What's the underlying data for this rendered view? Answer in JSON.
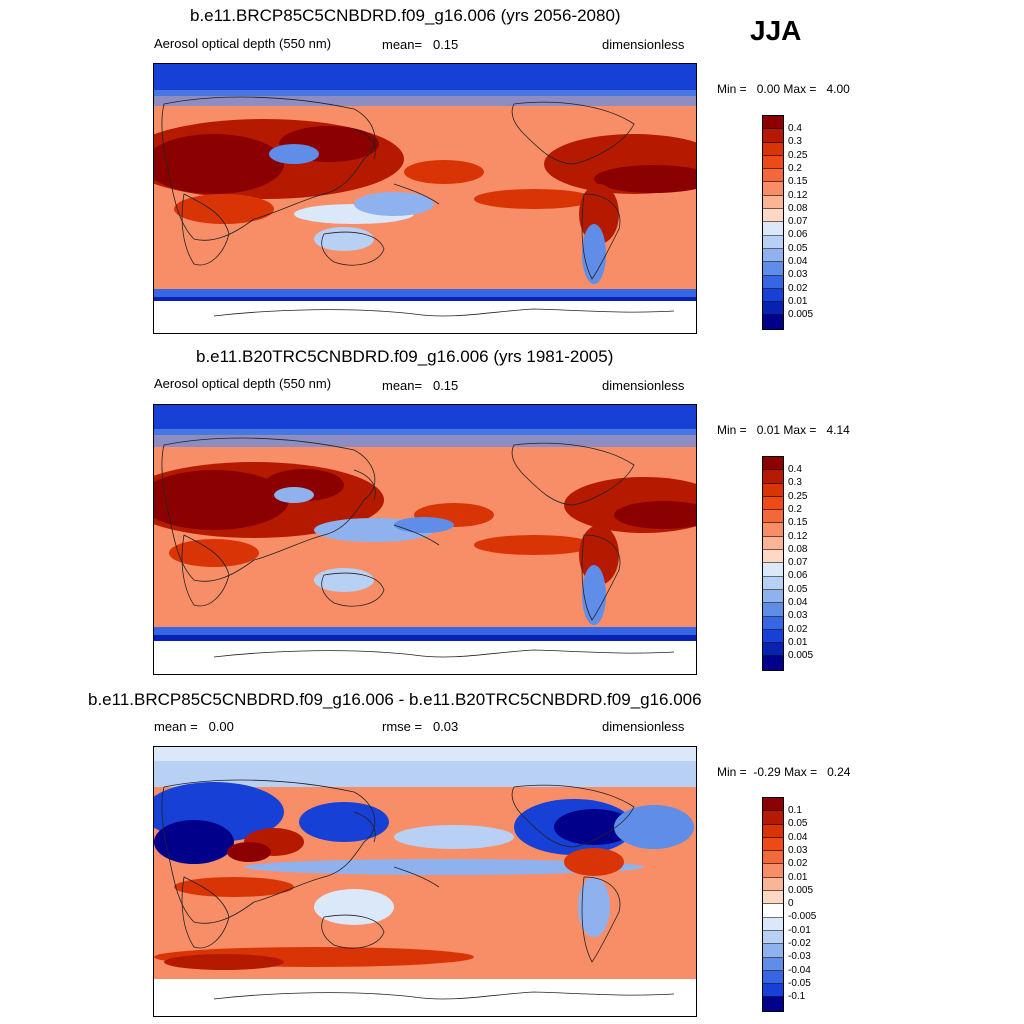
{
  "season": "JJA",
  "units_label": "dimensionless",
  "panels": [
    {
      "title": "b.e11.BRCP85C5CNBDRD.f09_g16.006 (yrs 2056-2080)",
      "variable": "Aerosol optical depth (550 nm)",
      "stat1_label": "mean=",
      "stat1_value": "0.15",
      "units": "dimensionless",
      "min_label": "Min =",
      "min_value": "0.00",
      "max_label": "Max =",
      "max_value": "4.00",
      "colorbar_labels": [
        "0.4",
        "0.3",
        "0.25",
        "0.2",
        "0.15",
        "0.12",
        "0.08",
        "0.07",
        "0.06",
        "0.05",
        "0.04",
        "0.03",
        "0.02",
        "0.01",
        "0.005"
      ],
      "colorbar_colors": [
        "#8b0000",
        "#b51a00",
        "#d93406",
        "#ee4a16",
        "#f3683a",
        "#f78e67",
        "#fab496",
        "#fdd8c4",
        "#dbe8fa",
        "#b8d0f4",
        "#8fb2ee",
        "#5f8de8",
        "#3666e4",
        "#1640d6",
        "#0721b0",
        "#00008b"
      ]
    },
    {
      "title": "b.e11.B20TRC5CNBDRD.f09_g16.006 (yrs 1981-2005)",
      "variable": "Aerosol optical depth (550 nm)",
      "stat1_label": "mean=",
      "stat1_value": "0.15",
      "units": "dimensionless",
      "min_label": "Min =",
      "min_value": "0.01",
      "max_label": "Max =",
      "max_value": "4.14",
      "colorbar_labels": [
        "0.4",
        "0.3",
        "0.25",
        "0.2",
        "0.15",
        "0.12",
        "0.08",
        "0.07",
        "0.06",
        "0.05",
        "0.04",
        "0.03",
        "0.02",
        "0.01",
        "0.005"
      ],
      "colorbar_colors": [
        "#8b0000",
        "#b51a00",
        "#d93406",
        "#ee4a16",
        "#f3683a",
        "#f78e67",
        "#fab496",
        "#fdd8c4",
        "#dbe8fa",
        "#b8d0f4",
        "#8fb2ee",
        "#5f8de8",
        "#3666e4",
        "#1640d6",
        "#0721b0",
        "#00008b"
      ]
    },
    {
      "title": "b.e11.BRCP85C5CNBDRD.f09_g16.006 - b.e11.B20TRC5CNBDRD.f09_g16.006",
      "variable": "mean =",
      "stat1_label": "rmse =",
      "stat1_value": "0.03",
      "mean_value": "0.00",
      "units": "dimensionless",
      "min_label": "Min =",
      "min_value": "-0.29",
      "max_label": "Max =",
      "max_value": "0.24",
      "colorbar_labels": [
        "0.1",
        "0.05",
        "0.04",
        "0.03",
        "0.02",
        "0.01",
        "0.005",
        "0",
        "-0.005",
        "-0.01",
        "-0.02",
        "-0.03",
        "-0.04",
        "-0.05",
        "-0.1"
      ],
      "colorbar_colors": [
        "#8b0000",
        "#b51a00",
        "#d93406",
        "#ee4a16",
        "#f3683a",
        "#f78e67",
        "#fab496",
        "#fdd8c4",
        "#ffffff",
        "#dbe8fa",
        "#b8d0f4",
        "#8fb2ee",
        "#5f8de8",
        "#3666e4",
        "#1640d6",
        "#00008b"
      ]
    }
  ]
}
